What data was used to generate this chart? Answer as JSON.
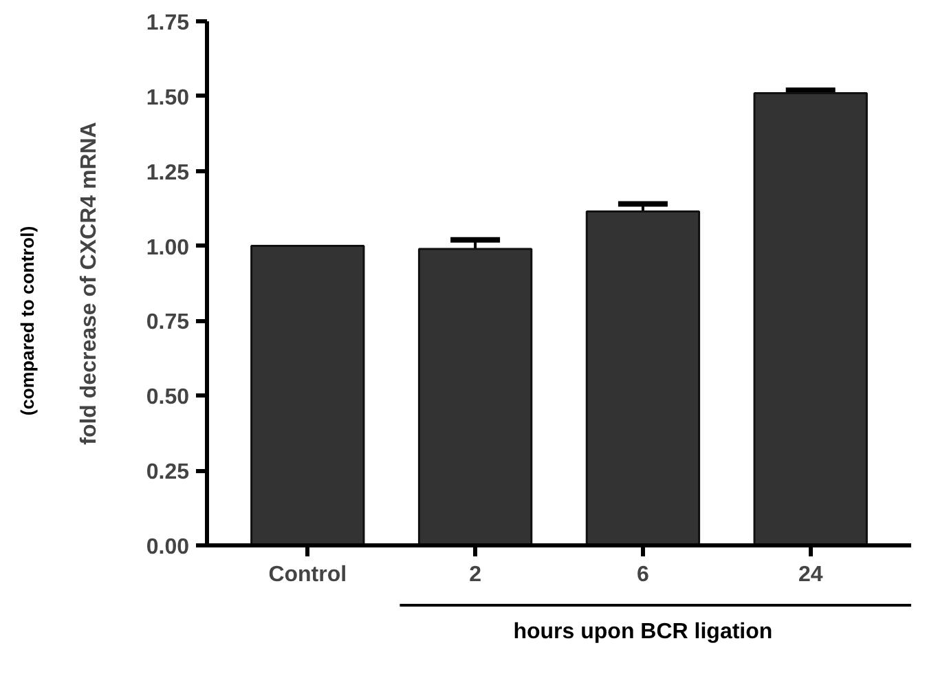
{
  "chart_data": {
    "type": "bar",
    "categories": [
      "Control",
      "2",
      "6",
      "24"
    ],
    "values": [
      1.0,
      0.99,
      1.115,
      1.51
    ],
    "errors": [
      null,
      0.03,
      0.025,
      0.01
    ],
    "color": "#333333",
    "ylabel": "fold decrease of CXCR4 mRNA",
    "xlabel": "hours upon BCR ligation",
    "annotations": [
      "(compared to control)"
    ],
    "ylim": [
      0,
      1.75
    ],
    "yticks": [
      {
        "value": 0,
        "label": "0.00"
      },
      {
        "value": 0.25,
        "label": "0.25"
      },
      {
        "value": 0.5,
        "label": "0.50"
      },
      {
        "value": 0.75,
        "label": "0.75"
      },
      {
        "value": 1.0,
        "label": "1.00"
      },
      {
        "value": 1.25,
        "label": "1.25"
      },
      {
        "value": 1.5,
        "label": "1.50"
      },
      {
        "value": 1.75,
        "label": "1.75"
      }
    ],
    "grid": false
  }
}
